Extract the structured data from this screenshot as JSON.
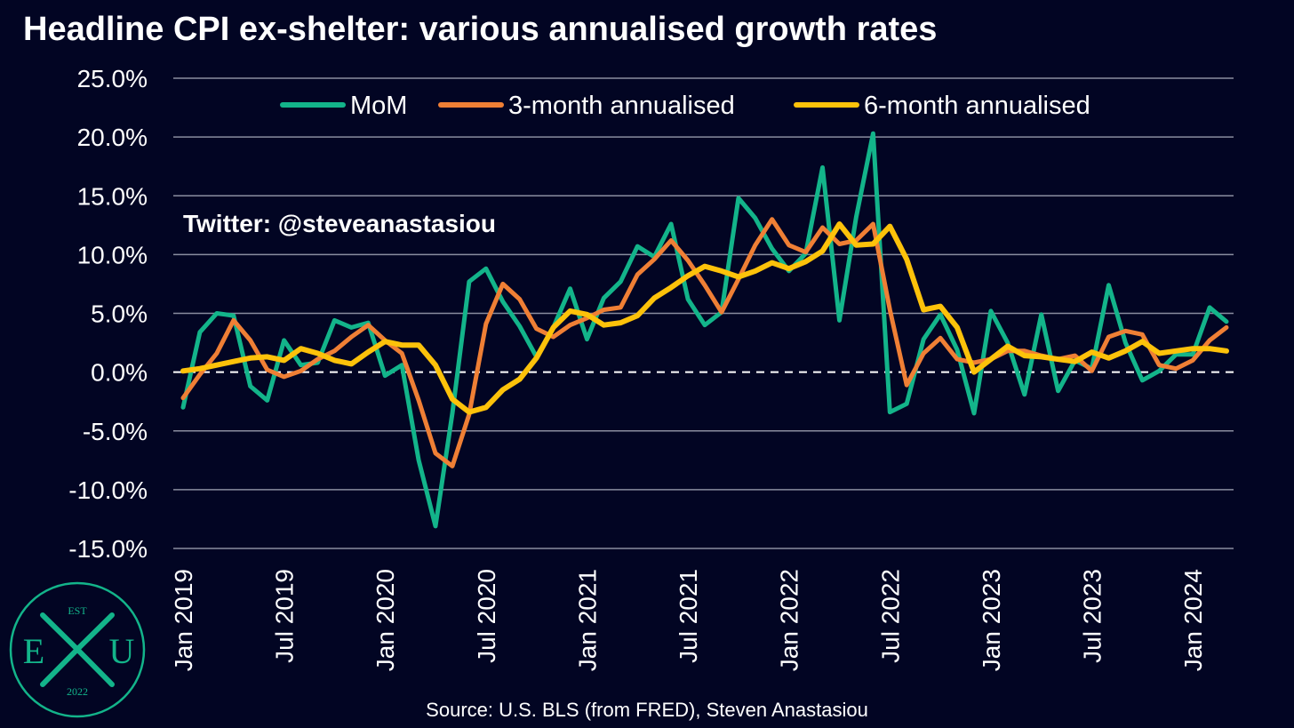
{
  "chart_data": {
    "type": "line",
    "title": "Headline CPI ex-shelter: various annualised growth rates",
    "source": "Source: U.S. BLS (from FRED), Steven Anastasiou",
    "annotation": "Twitter: @steveanastasiou",
    "xlabel": "",
    "ylabel": "",
    "ylim": [
      -15,
      25
    ],
    "y_ticks": [
      25,
      20,
      15,
      10,
      5,
      0,
      -5,
      -10,
      -15
    ],
    "y_tick_labels": [
      "25.0%",
      "20.0%",
      "15.0%",
      "10.0%",
      "5.0%",
      "0.0%",
      "-5.0%",
      "-10.0%",
      "-15.0%"
    ],
    "x_tick_labels": [
      "Jan 2019",
      "Jul 2019",
      "Jan 2020",
      "Jul 2020",
      "Jan 2021",
      "Jul 2021",
      "Jan 2022",
      "Jul 2022",
      "Jan 2023",
      "Jul 2023",
      "Jan 2024"
    ],
    "x_tick_index": [
      0,
      6,
      12,
      18,
      24,
      30,
      36,
      42,
      48,
      54,
      60
    ],
    "grid": true,
    "zero_line": "dashed",
    "legend_position": "top-center",
    "background": "#020523",
    "x": [
      "Jan 2019",
      "Feb 2019",
      "Mar 2019",
      "Apr 2019",
      "May 2019",
      "Jun 2019",
      "Jul 2019",
      "Aug 2019",
      "Sep 2019",
      "Oct 2019",
      "Nov 2019",
      "Dec 2019",
      "Jan 2020",
      "Feb 2020",
      "Mar 2020",
      "Apr 2020",
      "May 2020",
      "Jun 2020",
      "Jul 2020",
      "Aug 2020",
      "Sep 2020",
      "Oct 2020",
      "Nov 2020",
      "Dec 2020",
      "Jan 2021",
      "Feb 2021",
      "Mar 2021",
      "Apr 2021",
      "May 2021",
      "Jun 2021",
      "Jul 2021",
      "Aug 2021",
      "Sep 2021",
      "Oct 2021",
      "Nov 2021",
      "Dec 2021",
      "Jan 2022",
      "Feb 2022",
      "Mar 2022",
      "Apr 2022",
      "May 2022",
      "Jun 2022",
      "Jul 2022",
      "Aug 2022",
      "Sep 2022",
      "Oct 2022",
      "Nov 2022",
      "Dec 2022",
      "Jan 2023",
      "Feb 2023",
      "Mar 2023",
      "Apr 2023",
      "May 2023",
      "Jun 2023",
      "Jul 2023",
      "Aug 2023",
      "Sep 2023",
      "Oct 2023",
      "Nov 2023",
      "Dec 2023",
      "Jan 2024",
      "Feb 2024",
      "Mar 2024"
    ],
    "series": [
      {
        "name": "MoM",
        "color": "#13b48a",
        "values": [
          -3.0,
          3.4,
          5.0,
          4.8,
          -1.2,
          -2.4,
          2.7,
          0.6,
          0.8,
          4.4,
          3.8,
          4.2,
          -0.3,
          0.6,
          -7.5,
          -13.1,
          -3.5,
          7.7,
          8.8,
          6.0,
          3.9,
          1.3,
          3.8,
          7.1,
          2.8,
          6.3,
          7.7,
          10.7,
          9.8,
          12.6,
          6.2,
          4.0,
          5.1,
          14.8,
          13.1,
          10.5,
          8.6,
          10.1,
          17.4,
          4.4,
          13.2,
          20.3,
          -3.4,
          -2.7,
          2.8,
          4.9,
          1.9,
          -3.5,
          5.2,
          2.5,
          -1.9,
          4.9,
          -1.6,
          1.0,
          0.3,
          7.4,
          2.5,
          -0.7,
          0.1,
          1.5,
          1.5,
          5.5,
          4.3
        ]
      },
      {
        "name": "3-month annualised",
        "color": "#ef7f35",
        "values": [
          -2.2,
          -0.2,
          1.6,
          4.4,
          2.7,
          0.2,
          -0.4,
          0.1,
          1.1,
          1.8,
          3.0,
          4.0,
          2.7,
          1.6,
          -2.4,
          -6.9,
          -8.0,
          -3.6,
          4.1,
          7.5,
          6.2,
          3.7,
          3.0,
          4.0,
          4.6,
          5.3,
          5.5,
          8.3,
          9.6,
          11.2,
          9.5,
          7.4,
          5.1,
          7.9,
          10.8,
          13.0,
          10.8,
          10.2,
          12.3,
          10.9,
          11.2,
          12.6,
          5.3,
          -1.1,
          1.6,
          2.9,
          1.1,
          0.8,
          1.1,
          1.8,
          1.8,
          1.4,
          1.1,
          1.4,
          0.1,
          3.0,
          3.5,
          3.2,
          0.6,
          0.3,
          1.0,
          2.7,
          3.8
        ]
      },
      {
        "name": "6-month annualised",
        "color": "#fdc20a",
        "values": [
          0.1,
          0.3,
          0.6,
          0.9,
          1.2,
          1.3,
          1.0,
          2.0,
          1.6,
          1.0,
          0.7,
          1.7,
          2.6,
          2.3,
          2.3,
          0.6,
          -2.3,
          -3.4,
          -3.0,
          -1.5,
          -0.6,
          1.2,
          3.8,
          5.2,
          4.9,
          4.0,
          4.2,
          4.8,
          6.3,
          7.2,
          8.2,
          9.0,
          8.6,
          8.1,
          8.6,
          9.3,
          8.8,
          9.4,
          10.3,
          12.6,
          10.8,
          10.9,
          12.4,
          9.6,
          5.3,
          5.6,
          3.8,
          0.0,
          1.1,
          2.2,
          1.4,
          1.3,
          1.1,
          0.9,
          1.7,
          1.2,
          1.8,
          2.6,
          1.6,
          1.8,
          2.0,
          2.0,
          1.8
        ]
      }
    ]
  },
  "logo": {
    "top_text": "EST",
    "left_letter": "E",
    "center_letter": "X",
    "right_letter": "U",
    "bottom_text": "2022",
    "color": "#13b48a"
  }
}
